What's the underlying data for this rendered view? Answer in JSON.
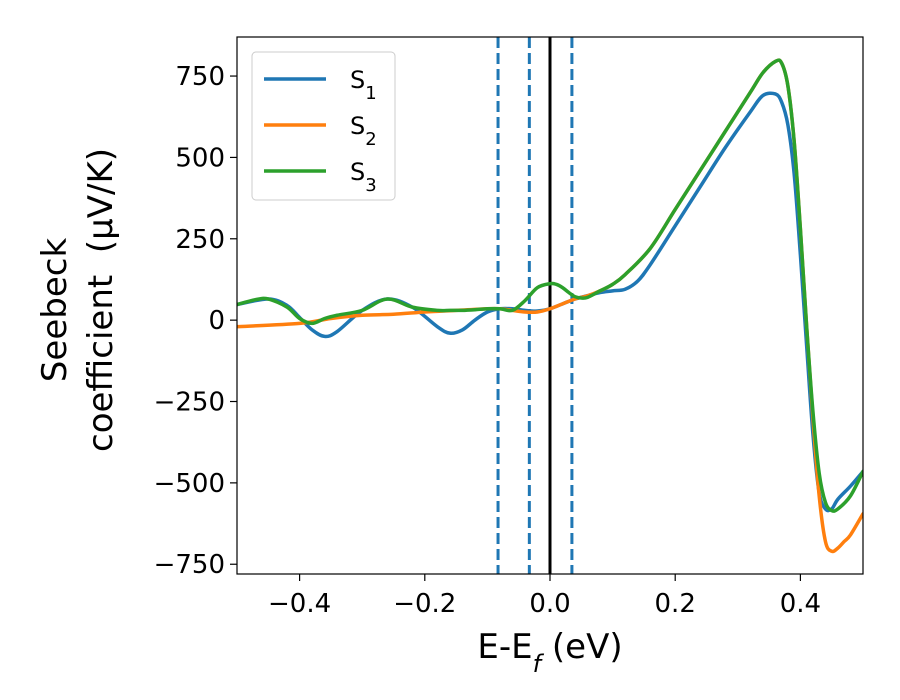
{
  "chart_data": {
    "type": "line",
    "xlabel": {
      "main": "E-E",
      "sub": "f",
      "suffix": " (eV)"
    },
    "ylabel": {
      "line1": "Seebeck",
      "line2": "coefficient  (μV/K)"
    },
    "xlim": [
      -0.5,
      0.5
    ],
    "ylim": [
      -780,
      870
    ],
    "xticks": [
      -0.4,
      -0.2,
      0.0,
      0.2,
      0.4
    ],
    "xtick_labels": [
      "−0.4",
      "−0.2",
      "0.0",
      "0.2",
      "0.4"
    ],
    "yticks": [
      -750,
      -500,
      -250,
      0,
      250,
      500,
      750
    ],
    "ytick_labels": [
      "−750",
      "−500",
      "−250",
      "0",
      "250",
      "500",
      "750"
    ],
    "grid": false,
    "legend_position": "top-left",
    "vlines": [
      {
        "x": -0.083,
        "style": "dashed",
        "color": "#1f77b4"
      },
      {
        "x": -0.033,
        "style": "dashed",
        "color": "#1f77b4"
      },
      {
        "x": 0.0,
        "style": "solid",
        "color": "#000000"
      },
      {
        "x": 0.035,
        "style": "dashed",
        "color": "#1f77b4"
      }
    ],
    "series": [
      {
        "name": "S",
        "sub": "1",
        "color": "#1f77b4",
        "x": [
          -0.5,
          -0.45,
          -0.42,
          -0.4,
          -0.38,
          -0.36,
          -0.34,
          -0.3,
          -0.26,
          -0.22,
          -0.18,
          -0.16,
          -0.14,
          -0.12,
          -0.1,
          -0.08,
          -0.06,
          -0.04,
          -0.02,
          0.0,
          0.02,
          0.04,
          0.06,
          0.08,
          0.1,
          0.12,
          0.14,
          0.16,
          0.2,
          0.24,
          0.28,
          0.32,
          0.34,
          0.36,
          0.37,
          0.38,
          0.39,
          0.4,
          0.41,
          0.42,
          0.43,
          0.44,
          0.45,
          0.46,
          0.48,
          0.5
        ],
        "y": [
          48,
          65,
          45,
          8,
          -30,
          -50,
          -35,
          30,
          65,
          40,
          -20,
          -40,
          -30,
          0,
          25,
          35,
          35,
          30,
          28,
          35,
          50,
          65,
          75,
          85,
          90,
          95,
          120,
          170,
          290,
          410,
          530,
          640,
          690,
          695,
          670,
          600,
          450,
          200,
          -80,
          -350,
          -530,
          -580,
          -580,
          -550,
          -510,
          -465
        ]
      },
      {
        "name": "S",
        "sub": "2",
        "color": "#ff7f0e",
        "x": [
          -0.5,
          -0.4,
          -0.35,
          -0.3,
          -0.25,
          -0.2,
          -0.15,
          -0.1,
          -0.08,
          -0.06,
          -0.04,
          -0.02,
          0.0,
          0.02,
          0.04,
          0.06,
          0.08,
          0.1,
          0.12,
          0.16,
          0.2,
          0.24,
          0.28,
          0.32,
          0.34,
          0.36,
          0.37,
          0.38,
          0.39,
          0.4,
          0.41,
          0.42,
          0.43,
          0.44,
          0.45,
          0.46,
          0.47,
          0.48,
          0.5
        ],
        "y": [
          -20,
          -10,
          5,
          15,
          18,
          25,
          30,
          35,
          35,
          30,
          25,
          25,
          35,
          50,
          65,
          75,
          90,
          110,
          140,
          220,
          340,
          460,
          580,
          700,
          760,
          795,
          790,
          720,
          550,
          280,
          -20,
          -300,
          -540,
          -680,
          -710,
          -700,
          -680,
          -660,
          -595
        ]
      },
      {
        "name": "S",
        "sub": "3",
        "color": "#2ca02c",
        "x": [
          -0.5,
          -0.47,
          -0.45,
          -0.42,
          -0.4,
          -0.38,
          -0.36,
          -0.34,
          -0.3,
          -0.26,
          -0.22,
          -0.18,
          -0.16,
          -0.14,
          -0.12,
          -0.1,
          -0.08,
          -0.06,
          -0.04,
          -0.02,
          0.0,
          0.01,
          0.02,
          0.03,
          0.04,
          0.05,
          0.06,
          0.08,
          0.1,
          0.12,
          0.16,
          0.2,
          0.24,
          0.28,
          0.32,
          0.34,
          0.36,
          0.37,
          0.38,
          0.39,
          0.4,
          0.41,
          0.42,
          0.43,
          0.44,
          0.45,
          0.46,
          0.48,
          0.5
        ],
        "y": [
          48,
          63,
          65,
          40,
          5,
          -10,
          5,
          15,
          30,
          65,
          40,
          30,
          30,
          30,
          32,
          35,
          35,
          30,
          60,
          100,
          112,
          110,
          100,
          85,
          72,
          68,
          70,
          90,
          110,
          140,
          220,
          340,
          460,
          580,
          700,
          760,
          795,
          790,
          720,
          550,
          280,
          -20,
          -280,
          -470,
          -560,
          -585,
          -580,
          -540,
          -465
        ]
      }
    ]
  }
}
